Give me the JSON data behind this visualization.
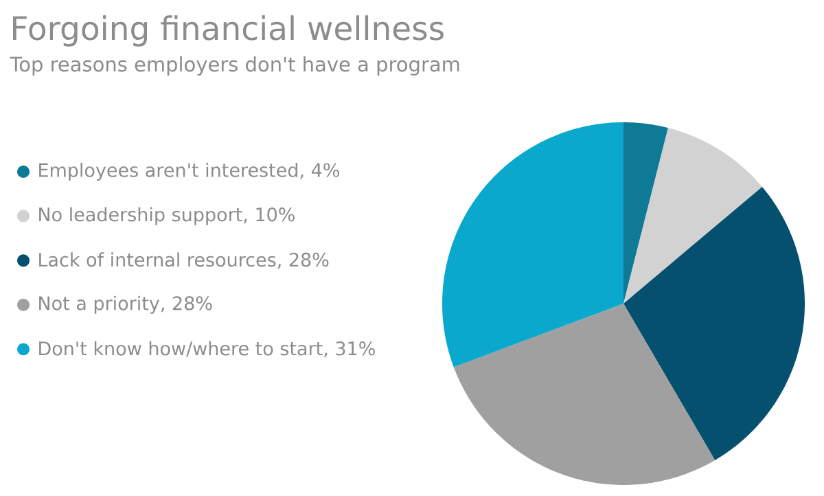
{
  "chart_data": {
    "type": "pie",
    "title": "Forgoing financial wellness",
    "subtitle": "Top reasons employers don't have a program",
    "categories": [
      "Employees aren't interested, 4%",
      "No leadership support, 10%",
      "Lack of internal resources, 28%",
      "Not a priority, 28%",
      "Don't know how/where to start, 31%"
    ],
    "values": [
      4,
      10,
      28,
      28,
      31
    ],
    "colors": [
      "#0e7a96",
      "#d3d2d3",
      "#04506e",
      "#a0a0a0",
      "#0aa8cc"
    ],
    "legend": "left"
  }
}
